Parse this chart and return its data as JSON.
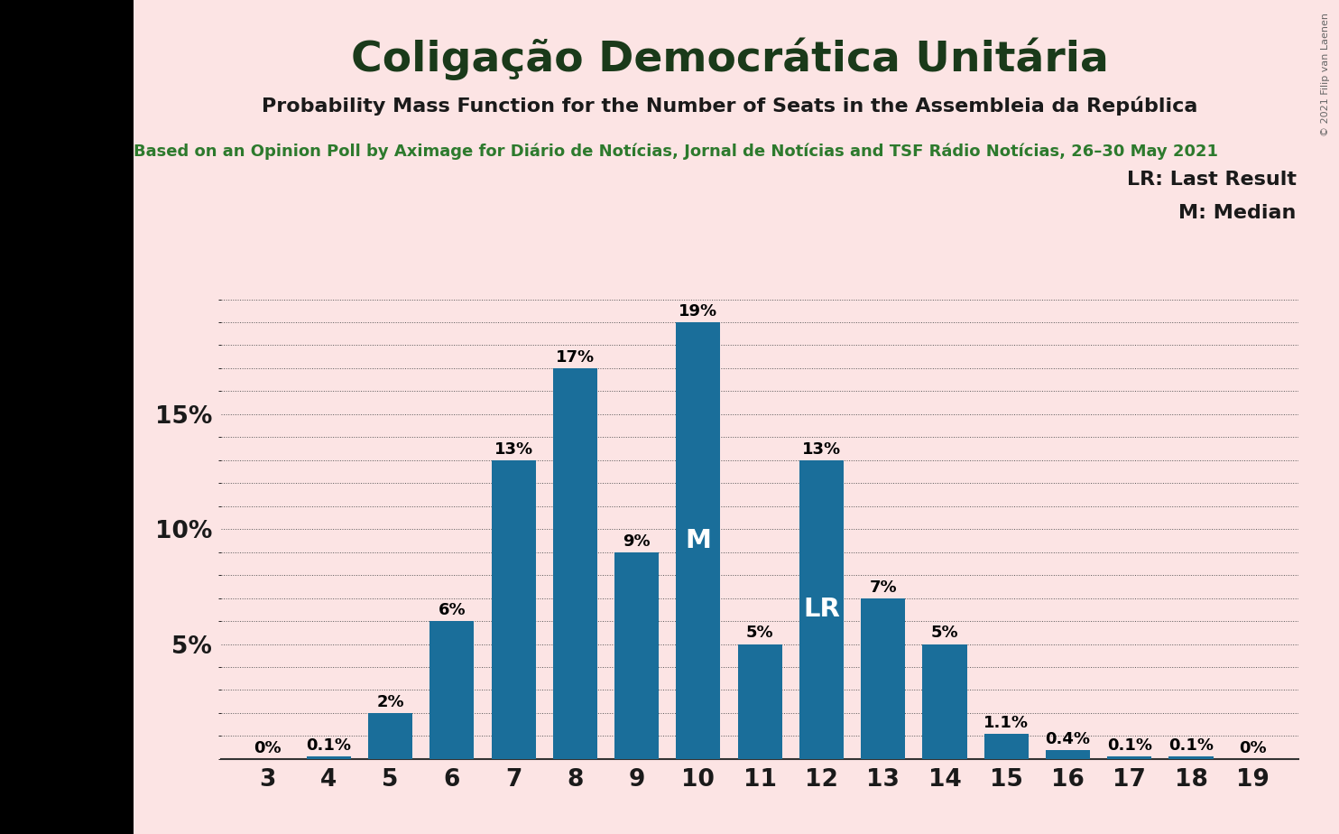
{
  "title": "Coligação Democrática Unitária",
  "subtitle": "Probability Mass Function for the Number of Seats in the Assembleia da República",
  "source_line": "Based on an Opinion Poll by Aximage for Diário de Notícias, Jornal de Notícias and TSF Rádio Notícias, 26–30 May 2021",
  "copyright": "© 2021 Filip van Laenen",
  "legend_lr": "LR: Last Result",
  "legend_m": "M: Median",
  "seats": [
    3,
    4,
    5,
    6,
    7,
    8,
    9,
    10,
    11,
    12,
    13,
    14,
    15,
    16,
    17,
    18,
    19
  ],
  "probabilities": [
    0.0,
    0.1,
    2.0,
    6.0,
    13.0,
    17.0,
    9.0,
    19.0,
    5.0,
    13.0,
    7.0,
    5.0,
    1.1,
    0.4,
    0.1,
    0.1,
    0.0
  ],
  "bar_color": "#1a6e9a",
  "background_color": "#fce4e4",
  "black_side_color": "#000000",
  "title_color": "#1a3a1a",
  "subtitle_color": "#1a1a1a",
  "source_color": "#2d7a2d",
  "median_seat": 10,
  "last_result_seat": 12,
  "yticks": [
    5,
    10,
    15
  ],
  "ylim": [
    0,
    20.5
  ],
  "grid_color": "#555555",
  "title_fontsize": 34,
  "subtitle_fontsize": 16,
  "source_fontsize": 13,
  "bar_label_fontsize": 13,
  "axis_fontsize": 19,
  "legend_fontsize": 16,
  "annotation_fontsize": 21,
  "copyright_fontsize": 8
}
